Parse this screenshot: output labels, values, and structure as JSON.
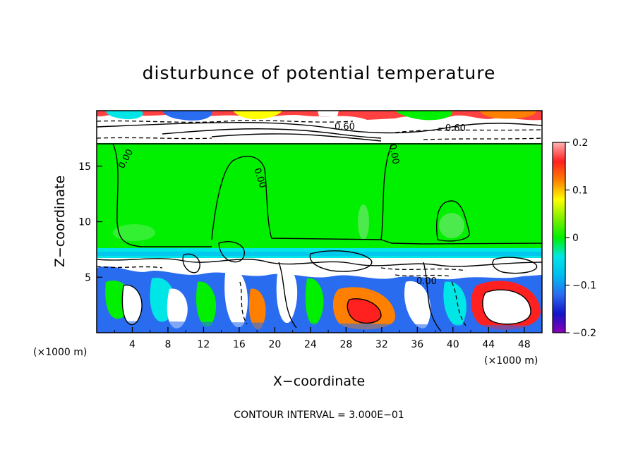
{
  "chart_data": {
    "type": "heatmap",
    "title": "disturbunce of potential temperature",
    "xlabel": "X−coordinate",
    "ylabel": "Z−coordinate",
    "x_units_left": "(×1000 m)",
    "x_units_right": "(×1000 m)",
    "xlim": [
      0,
      50
    ],
    "ylim": [
      0,
      20
    ],
    "x_ticks": [
      4,
      8,
      12,
      16,
      20,
      24,
      28,
      32,
      36,
      40,
      44,
      48
    ],
    "y_ticks": [
      5,
      10,
      15
    ],
    "colorbar": {
      "min": -0.2,
      "max": 0.2,
      "ticks": [
        0.2,
        0.1,
        0,
        -0.1,
        -0.2
      ],
      "tick_labels": [
        "0.2",
        "0.1",
        "0",
        "−0.1",
        "−0.2"
      ]
    },
    "contour_labels": [
      "0.00",
      "0.00",
      "0.00",
      "0.00",
      "0.60",
      "−0.60",
      "0.60",
      "0.00"
    ],
    "footer": "CONTOUR INTERVAL = 3.000E−01",
    "colors": {
      "green": "#00f000",
      "cyan": "#00e6e6",
      "blue": "#2a6cf0",
      "deep_blue": "#1414c8",
      "purple": "#8a00b4",
      "yellow": "#ffff00",
      "orange": "#ff8000",
      "red": "#ff2020",
      "pink": "#ffb4b4",
      "white": "#ffffff"
    }
  }
}
